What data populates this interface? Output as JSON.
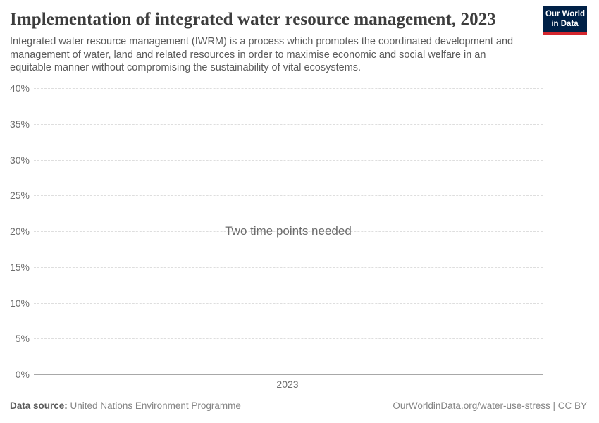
{
  "header": {
    "title": "Implementation of integrated water resource management, 2023",
    "subtitle": "Integrated water resource management (IWRM) is a process which promotes the coordinated development and management of water, land and related resources in order to maximise economic and social welfare in an equitable manner without compromising the sustainability of vital ecosystems.",
    "logo": {
      "line1": "Our World",
      "line2": "in Data",
      "bg_color": "#002147",
      "accent_color": "#d4262e"
    }
  },
  "chart_data": {
    "type": "line",
    "title": "Implementation of integrated water resource management, 2023",
    "series": [],
    "message": "Two time points needed",
    "xlabel": "",
    "ylabel": "",
    "ylim": [
      0,
      40
    ],
    "ytick_unit": "%",
    "yticks": [
      "0%",
      "5%",
      "10%",
      "15%",
      "20%",
      "25%",
      "30%",
      "35%",
      "40%"
    ],
    "xticks": [
      "2023"
    ],
    "grid": "horizontal-dashed",
    "legend_position": "none",
    "colors": {
      "gridline": "#dedede",
      "axis_line": "#a8a8a8",
      "tick_label": "#6d6d6d",
      "message_text": "#6d6d6d"
    }
  },
  "footer": {
    "datasource_label": "Data source:",
    "datasource_value": "United Nations Environment Programme",
    "url_text": "OurWorldinData.org/water-use-stress | CC BY"
  }
}
